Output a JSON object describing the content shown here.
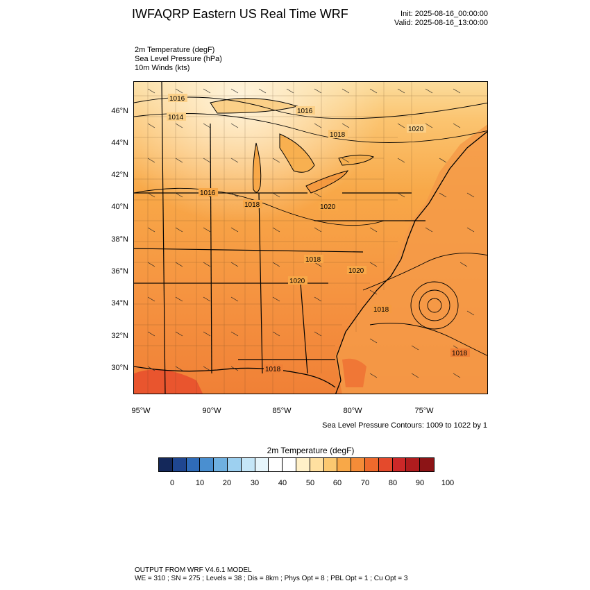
{
  "header": {
    "title": "IWFAQRP Eastern US Real Time WRF",
    "init": "Init: 2025-08-16_00:00:00",
    "valid": "Valid: 2025-08-16_13:00:00"
  },
  "variables": [
    "2m Temperature   (degF)",
    "Sea Level Pressure   (hPa)",
    "10m Winds   (kts)"
  ],
  "map": {
    "lat_ticks": [
      "46°N",
      "44°N",
      "42°N",
      "40°N",
      "38°N",
      "36°N",
      "34°N",
      "32°N",
      "30°N"
    ],
    "lon_ticks": [
      "95°W",
      "90°W",
      "85°W",
      "80°W",
      "75°W"
    ],
    "isobar_labels": [
      "1016",
      "1014",
      "1016",
      "1018",
      "1020",
      "1016",
      "1018",
      "1020",
      "1018",
      "1020",
      "1020",
      "1018",
      "1018",
      "1018"
    ],
    "contour_note": "Sea Level Pressure Contours: 1009 to 1022 by 1"
  },
  "colorbar": {
    "title": "2m Temperature  (degF)",
    "colors": [
      "#14285a",
      "#1f4690",
      "#2f6bb8",
      "#4a8fd0",
      "#6fb0e0",
      "#9dd0f0",
      "#c5e6f7",
      "#e6f5fb",
      "#ffffff",
      "#ffffff",
      "#fff0c8",
      "#ffe0a0",
      "#fbc870",
      "#f8a848",
      "#f48c38",
      "#ee6a2c",
      "#e44a2c",
      "#cc2828",
      "#b01c1e",
      "#8c1416"
    ],
    "labels": [
      "0",
      "10",
      "20",
      "30",
      "40",
      "50",
      "60",
      "70",
      "80",
      "90",
      "100"
    ]
  },
  "footer": {
    "line1": "OUTPUT FROM WRF V4.6.1 MODEL",
    "line2": "WE = 310 ; SN = 275 ; Levels = 38 ; Dis = 8km ; Phys Opt = 8 ; PBL Opt = 1 ; Cu Opt = 3"
  }
}
